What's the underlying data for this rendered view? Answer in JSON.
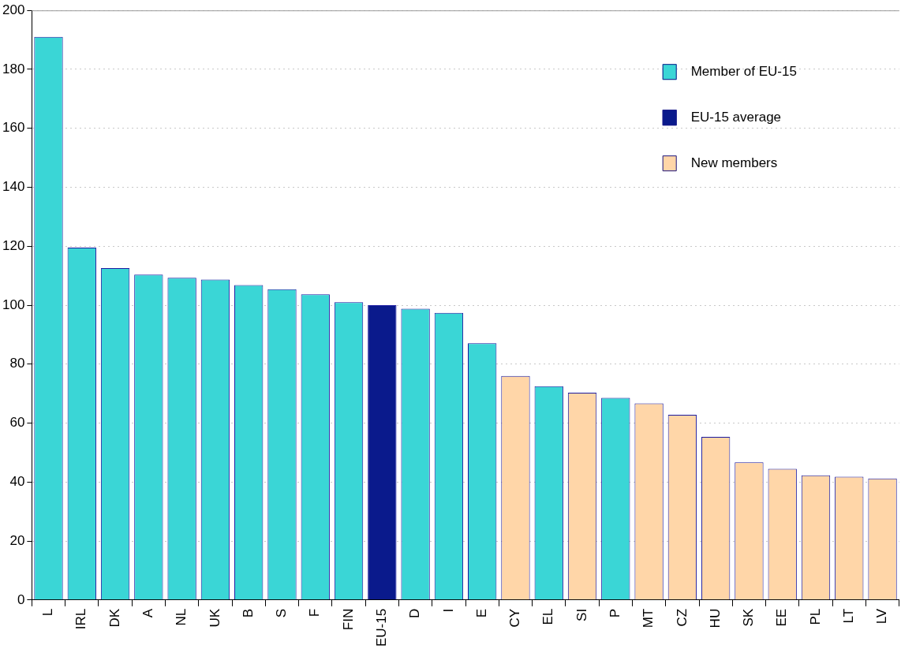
{
  "chart_data": {
    "type": "bar",
    "categories": [
      "L",
      "IRL",
      "DK",
      "A",
      "NL",
      "UK",
      "B",
      "S",
      "F",
      "FIN",
      "EU-15",
      "D",
      "I",
      "E",
      "CY",
      "EL",
      "SI",
      "P",
      "MT",
      "CZ",
      "HU",
      "SK",
      "EE",
      "PL",
      "LT",
      "LV"
    ],
    "series": [
      {
        "name": "Member of EU-15",
        "color": "#3ad6d6",
        "values": [
          191,
          119.5,
          112.6,
          110.4,
          109.3,
          108.7,
          106.8,
          105.4,
          103.7,
          101,
          null,
          98.8,
          97.4,
          87.1,
          null,
          72.5,
          null,
          68.6,
          null,
          null,
          null,
          null,
          null,
          null,
          null,
          null
        ]
      },
      {
        "name": "EU-15 average",
        "color": "#0a1a8c",
        "values": [
          null,
          null,
          null,
          null,
          null,
          null,
          null,
          null,
          null,
          null,
          100,
          null,
          null,
          null,
          null,
          null,
          null,
          null,
          null,
          null,
          null,
          null,
          null,
          null,
          null,
          null
        ]
      },
      {
        "name": "New members",
        "color": "#ffd6a8",
        "values": [
          null,
          null,
          null,
          null,
          null,
          null,
          null,
          null,
          null,
          null,
          null,
          null,
          null,
          null,
          76,
          null,
          70.3,
          null,
          66.7,
          62.8,
          55.3,
          46.7,
          44.5,
          42.3,
          41.8,
          41.2
        ]
      }
    ],
    "ylim": [
      0,
      200
    ],
    "yticks": [
      0,
      20,
      40,
      60,
      80,
      100,
      120,
      140,
      160,
      180,
      200
    ],
    "grid": "y",
    "legend": "top right"
  }
}
